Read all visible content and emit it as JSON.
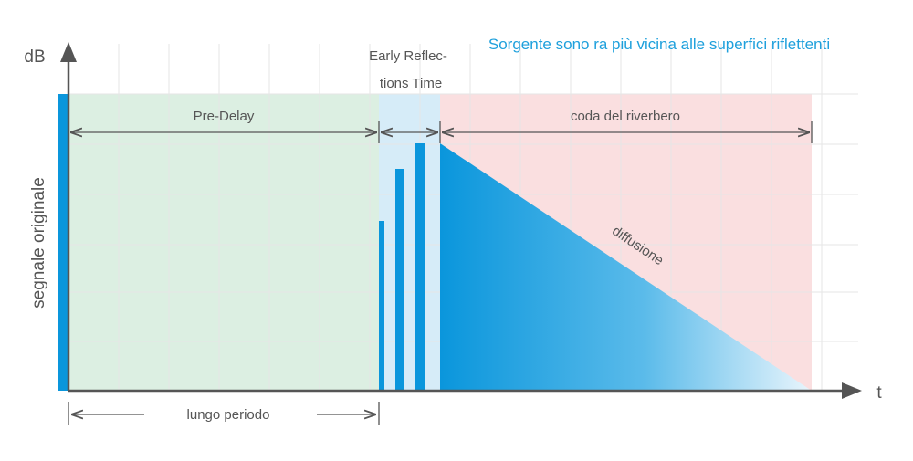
{
  "title": "Sorgente sono ra più vicina alle superfici riflettenti",
  "axes": {
    "y_label": "dB",
    "x_label": "t",
    "y_side_label": "segnale originale"
  },
  "regions": {
    "pre_delay": "Pre-Delay",
    "early_reflections_line1": "Early Reflec-",
    "early_reflections_line2": "tions Time",
    "reverb_tail": "coda del riverbero",
    "diffusion": "diffusione"
  },
  "bottom_label": "lungo periodo",
  "colors": {
    "accent_blue": "#0a96dc",
    "title_blue": "#1ea0dc",
    "pre_delay_bg": "#dcefe2",
    "early_bg": "#d6ecf8",
    "reverb_bg": "#fadfe0",
    "axis": "#555555"
  }
}
